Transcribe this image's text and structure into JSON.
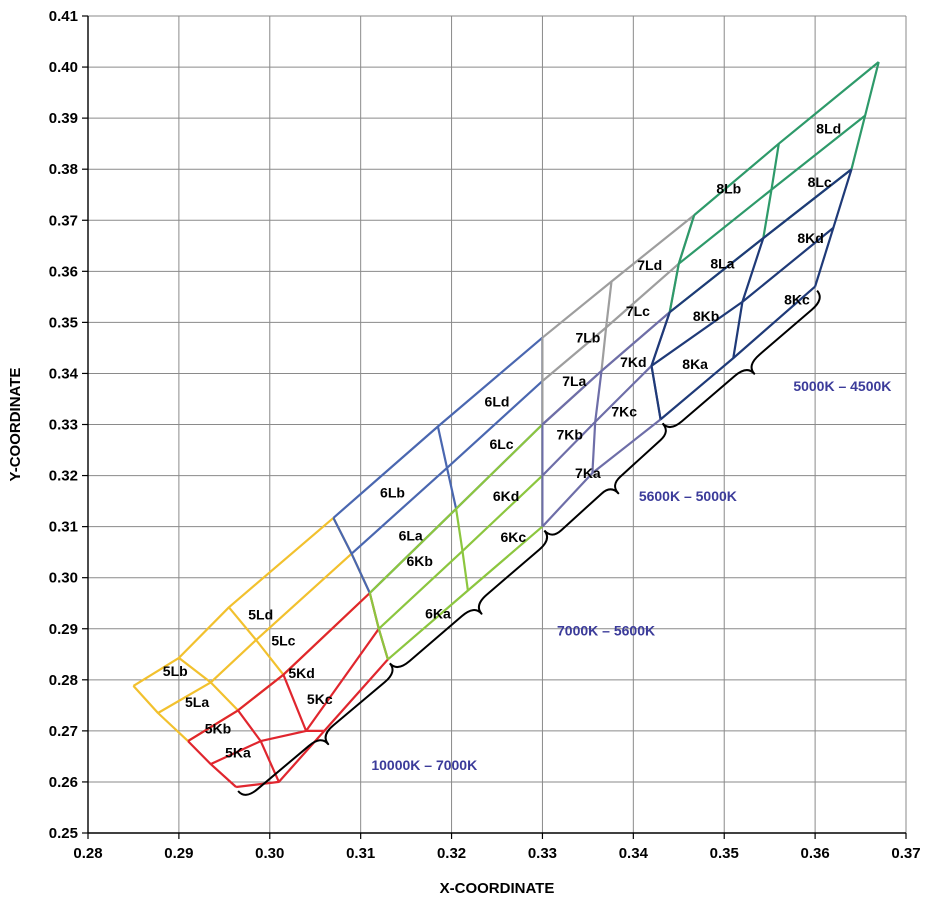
{
  "chart_data": {
    "type": "diagram",
    "xlabel": "X-COORDINATE",
    "ylabel": "Y-COORDINATE",
    "xlim": [
      0.28,
      0.37
    ],
    "ylim": [
      0.25,
      0.41
    ],
    "x_ticks": [
      "0.28",
      "0.29",
      "0.30",
      "0.31",
      "0.32",
      "0.33",
      "0.34",
      "0.35",
      "0.36",
      "0.37"
    ],
    "y_ticks": [
      "0.25",
      "0.26",
      "0.27",
      "0.28",
      "0.29",
      "0.30",
      "0.31",
      "0.32",
      "0.33",
      "0.34",
      "0.35",
      "0.36",
      "0.37",
      "0.38",
      "0.39",
      "0.40",
      "0.41"
    ],
    "grid": true,
    "colors": {
      "grid": "#8a8a8a",
      "axis": "#000000",
      "range_text": "#3b3b9a",
      "5L": "#f2c12e",
      "5K": "#e0262e",
      "6L": "#4a67b0",
      "6K": "#8cc63f",
      "7L": "#9e9e9e",
      "7K": "#6e6ea8",
      "8L": "#2e9a6a",
      "8K": "#1f3a78"
    },
    "groups": [
      {
        "name": "5L",
        "color_key": "5L",
        "nodes": [
          [
            [
              0.285,
              0.2788
            ],
            [
              0.29,
              0.2843
            ],
            [
              0.2955,
              0.2942
            ],
            [
              0.307,
              0.3117
            ]
          ],
          [
            [
              0.2877,
              0.2735
            ],
            [
              0.2935,
              0.2795
            ],
            [
              0.2985,
              0.2878
            ],
            [
              0.309,
              0.3047
            ]
          ],
          [
            [
              0.291,
              0.268
            ],
            [
              0.2965,
              0.274
            ],
            [
              0.3015,
              0.281
            ],
            [
              0.311,
              0.297
            ]
          ]
        ]
      },
      {
        "name": "5K",
        "color_key": "5K",
        "nodes": [
          [
            [
              0.291,
              0.268
            ],
            [
              0.2965,
              0.274
            ],
            [
              0.3015,
              0.281
            ],
            [
              0.311,
              0.297
            ]
          ],
          [
            [
              0.2935,
              0.2635
            ],
            [
              0.299,
              0.268
            ],
            [
              0.304,
              0.27
            ],
            [
              0.312,
              0.29
            ]
          ],
          [
            [
              0.2963,
              0.259
            ],
            [
              0.301,
              0.26
            ],
            [
              0.306,
              0.27
            ],
            [
              0.313,
              0.284
            ]
          ]
        ]
      },
      {
        "name": "6L",
        "color_key": "6L",
        "nodes": [
          [
            [
              0.307,
              0.3117
            ],
            [
              0.3185,
              0.3296
            ],
            [
              0.33,
              0.347
            ]
          ],
          [
            [
              0.309,
              0.3047
            ],
            [
              0.3195,
              0.3215
            ],
            [
              0.33,
              0.3385
            ]
          ],
          [
            [
              0.311,
              0.297
            ],
            [
              0.3205,
              0.3135
            ],
            [
              0.33,
              0.33
            ]
          ]
        ]
      },
      {
        "name": "6K",
        "color_key": "6K",
        "nodes": [
          [
            [
              0.311,
              0.297
            ],
            [
              0.3205,
              0.3135
            ],
            [
              0.33,
              0.33
            ]
          ],
          [
            [
              0.312,
              0.29
            ],
            [
              0.3212,
              0.3052
            ],
            [
              0.33,
              0.32
            ]
          ],
          [
            [
              0.313,
              0.284
            ],
            [
              0.3218,
              0.2975
            ],
            [
              0.33,
              0.31
            ]
          ]
        ]
      },
      {
        "name": "7L",
        "color_key": "7L",
        "nodes": [
          [
            [
              0.33,
              0.347
            ],
            [
              0.3376,
              0.358
            ],
            [
              0.3467,
              0.371
            ]
          ],
          [
            [
              0.33,
              0.3385
            ],
            [
              0.337,
              0.349
            ],
            [
              0.345,
              0.3615
            ]
          ],
          [
            [
              0.33,
              0.33
            ],
            [
              0.3365,
              0.3405
            ],
            [
              0.344,
              0.352
            ]
          ]
        ]
      },
      {
        "name": "7K",
        "color_key": "7K",
        "nodes": [
          [
            [
              0.33,
              0.33
            ],
            [
              0.3365,
              0.3405
            ],
            [
              0.344,
              0.352
            ]
          ],
          [
            [
              0.33,
              0.32
            ],
            [
              0.3358,
              0.3305
            ],
            [
              0.342,
              0.3415
            ]
          ],
          [
            [
              0.33,
              0.31
            ],
            [
              0.3355,
              0.3205
            ],
            [
              0.343,
              0.331
            ]
          ]
        ]
      },
      {
        "name": "8L",
        "color_key": "8L",
        "nodes": [
          [
            [
              0.3467,
              0.371
            ],
            [
              0.356,
              0.385
            ],
            [
              0.367,
              0.401
            ]
          ],
          [
            [
              0.345,
              0.3615
            ],
            [
              0.3552,
              0.376
            ],
            [
              0.3655,
              0.3905
            ]
          ],
          [
            [
              0.344,
              0.352
            ],
            [
              0.3543,
              0.3665
            ],
            [
              0.364,
              0.38
            ]
          ]
        ]
      },
      {
        "name": "8K",
        "color_key": "8K",
        "nodes": [
          [
            [
              0.344,
              0.352
            ],
            [
              0.3543,
              0.3665
            ],
            [
              0.364,
              0.38
            ]
          ],
          [
            [
              0.342,
              0.3415
            ],
            [
              0.352,
              0.354
            ],
            [
              0.362,
              0.3685
            ]
          ],
          [
            [
              0.343,
              0.331
            ],
            [
              0.351,
              0.343
            ],
            [
              0.36,
              0.357
            ]
          ]
        ]
      }
    ],
    "bin_labels": [
      {
        "text": "5Lb",
        "x": 0.2896,
        "y": 0.2817
      },
      {
        "text": "5La",
        "x": 0.292,
        "y": 0.2757
      },
      {
        "text": "5Kb",
        "x": 0.2943,
        "y": 0.2705
      },
      {
        "text": "5Ka",
        "x": 0.2965,
        "y": 0.2658
      },
      {
        "text": "5Ld",
        "x": 0.299,
        "y": 0.2928
      },
      {
        "text": "5Lc",
        "x": 0.3015,
        "y": 0.2877
      },
      {
        "text": "5Kd",
        "x": 0.3035,
        "y": 0.2813
      },
      {
        "text": "5Kc",
        "x": 0.3055,
        "y": 0.2762
      },
      {
        "text": "6Lb",
        "x": 0.3135,
        "y": 0.3167
      },
      {
        "text": "6La",
        "x": 0.3155,
        "y": 0.3083
      },
      {
        "text": "6Kb",
        "x": 0.3165,
        "y": 0.3033
      },
      {
        "text": "6Ka",
        "x": 0.3185,
        "y": 0.293
      },
      {
        "text": "6Ld",
        "x": 0.325,
        "y": 0.3345
      },
      {
        "text": "6Lc",
        "x": 0.3255,
        "y": 0.3262
      },
      {
        "text": "6Kd",
        "x": 0.326,
        "y": 0.316
      },
      {
        "text": "6Kc",
        "x": 0.3268,
        "y": 0.308
      },
      {
        "text": "7Lb",
        "x": 0.335,
        "y": 0.347
      },
      {
        "text": "7La",
        "x": 0.3335,
        "y": 0.3385
      },
      {
        "text": "7Kb",
        "x": 0.333,
        "y": 0.328
      },
      {
        "text": "7Ka",
        "x": 0.335,
        "y": 0.3205
      },
      {
        "text": "7Ld",
        "x": 0.3418,
        "y": 0.3612
      },
      {
        "text": "7Lc",
        "x": 0.3405,
        "y": 0.3522
      },
      {
        "text": "7Kd",
        "x": 0.34,
        "y": 0.3422
      },
      {
        "text": "7Kc",
        "x": 0.339,
        "y": 0.3325
      },
      {
        "text": "8Lb",
        "x": 0.3505,
        "y": 0.3762
      },
      {
        "text": "8La",
        "x": 0.3498,
        "y": 0.3615
      },
      {
        "text": "8Kb",
        "x": 0.348,
        "y": 0.3512
      },
      {
        "text": "8Ka",
        "x": 0.3468,
        "y": 0.3418
      },
      {
        "text": "8Ld",
        "x": 0.3615,
        "y": 0.388
      },
      {
        "text": "8Lc",
        "x": 0.3605,
        "y": 0.3775
      },
      {
        "text": "8Kd",
        "x": 0.3595,
        "y": 0.3665
      },
      {
        "text": "8Kc",
        "x": 0.358,
        "y": 0.3545
      }
    ],
    "cct_ranges": [
      {
        "label": "10000K – 7000K",
        "from": [
          0.2963,
          0.259
        ],
        "to": [
          0.313,
          0.284
        ],
        "text_at": [
          0.317,
          0.2633
        ]
      },
      {
        "label": "7000K – 5600K",
        "from": [
          0.313,
          0.284
        ],
        "to": [
          0.33,
          0.31
        ],
        "text_at": [
          0.337,
          0.2897
        ]
      },
      {
        "label": "5600K – 5000K",
        "from": [
          0.33,
          0.31
        ],
        "to": [
          0.343,
          0.331
        ],
        "text_at": [
          0.346,
          0.316
        ]
      },
      {
        "label": "5000K – 4500K",
        "from": [
          0.343,
          0.331
        ],
        "to": [
          0.36,
          0.357
        ],
        "text_at": [
          0.363,
          0.3375
        ]
      }
    ]
  }
}
